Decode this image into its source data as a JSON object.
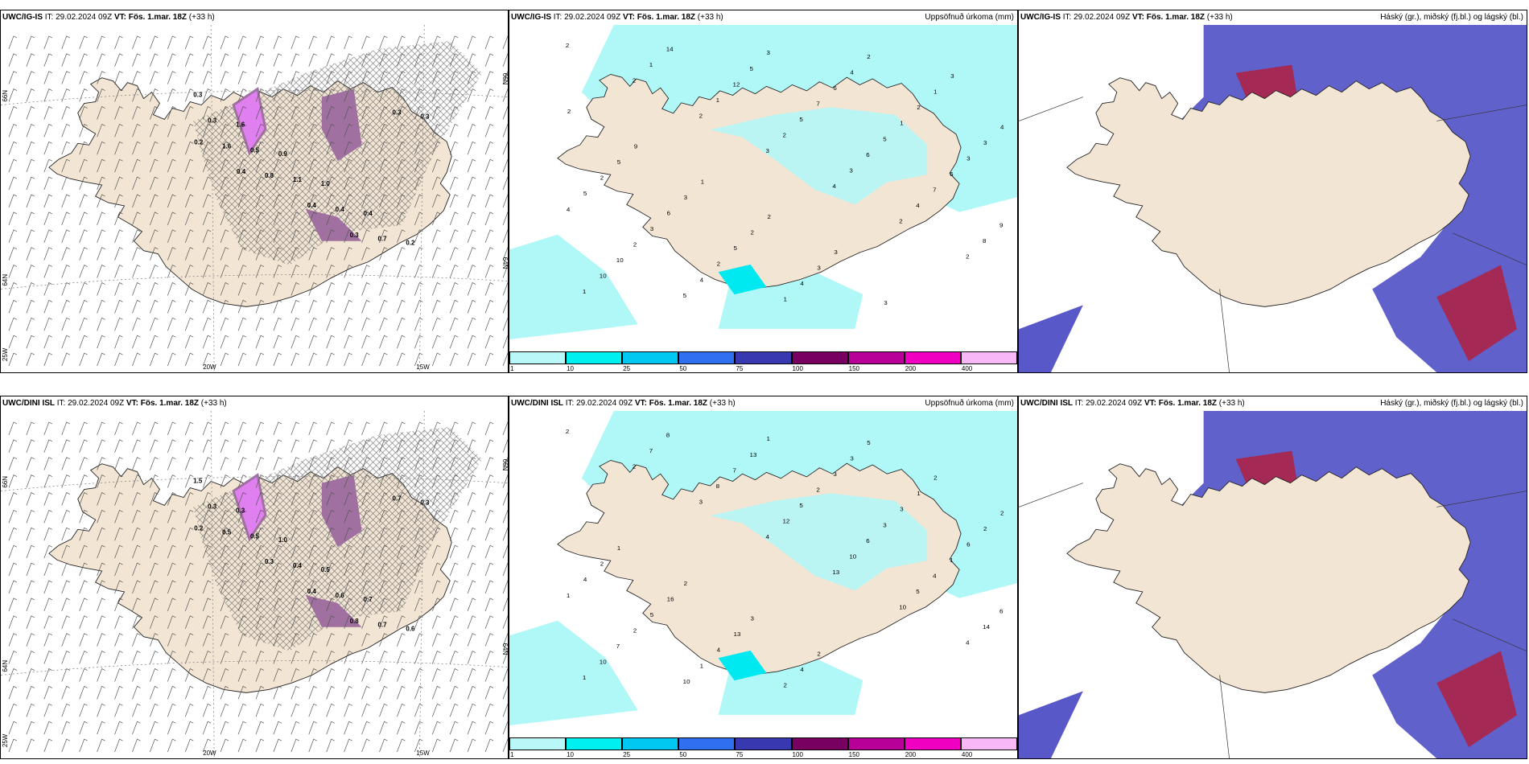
{
  "rows": [
    {
      "model": "UWC/IG-IS",
      "it_label": "IT:",
      "it_value": "29.02.2024 09Z",
      "vt_label": "VT:",
      "vt_value": "Fös. 1.mar. 18Z",
      "lead": "(+33 h)"
    },
    {
      "model": "UWC/DINI ISL",
      "it_label": "IT:",
      "it_value": "29.02.2024 09Z",
      "vt_label": "VT:",
      "vt_value": "Fös. 1.mar. 18Z",
      "lead": "(+33 h)"
    }
  ],
  "precip_title": "Uppsöfnuð úrkoma (mm)",
  "cloud_title": "Háský (gr.), miðský (fj.bl.) og lágský (bl.)",
  "axis": {
    "lat_66": "66N",
    "lat_64": "64N",
    "lon_25": "25W",
    "lon_20": "20W",
    "lon_15": "15W"
  },
  "colorbar": {
    "ticks": [
      "1",
      "10",
      "25",
      "50",
      "75",
      "100",
      "150",
      "200",
      "400"
    ],
    "colors": [
      "#b8f8f8",
      "#00f0f0",
      "#00c8f0",
      "#3070f0",
      "#3838b0",
      "#780060",
      "#b80098",
      "#f000c0",
      "#f8b8f8"
    ]
  },
  "colors": {
    "land": "#f3e5d4",
    "sea": "#ffffff",
    "snow_shade": "#a070a0",
    "snow_light": "#e080f0",
    "precip_light": "#b0f8f8",
    "precip_mid": "#00e8f0",
    "cloud_high": "#5858c8",
    "cloud_mid": "#90c0f0",
    "cloud_low": "#b02040"
  },
  "precip_numbers_top": [
    "2",
    "2",
    "2",
    "3",
    "4",
    "2",
    "2",
    "1",
    "1",
    "1",
    "2",
    "3",
    "4",
    "8",
    "10",
    "14",
    "12",
    "5",
    "6",
    "7",
    "9",
    "10",
    "5",
    "5",
    "7",
    "5",
    "6",
    "4",
    "2",
    "4",
    "3",
    "6",
    "1",
    "3",
    "5",
    "3",
    "2",
    "1",
    "4",
    "2",
    "3",
    "2",
    "6",
    "5",
    "4",
    "2",
    "1",
    "4",
    "5",
    "3",
    "2",
    "3",
    "3",
    "3",
    "2",
    "9",
    "1",
    "2",
    "3"
  ],
  "precip_numbers_bottom": [
    "2",
    "2",
    "3",
    "4",
    "13",
    "10",
    "4",
    "1",
    "7",
    "8",
    "12",
    "10",
    "5",
    "14",
    "10",
    "8",
    "7",
    "5",
    "6",
    "4",
    "6",
    "7",
    "10",
    "13",
    "2",
    "3",
    "1",
    "1",
    "2",
    "1",
    "1",
    "3",
    "3",
    "6",
    "4",
    "5",
    "4",
    "2",
    "3",
    "1",
    "2",
    "2",
    "16",
    "13",
    "4",
    "5",
    "2",
    "2",
    "1",
    "2",
    "3",
    "2"
  ],
  "snow_numbers_top": [
    "0.3",
    "1.6",
    "0.9",
    "1.0",
    "0.4",
    "0.2",
    "0.3",
    "0.5",
    "1.1",
    "0.4",
    "0.7",
    "0.3",
    "1.6",
    "0.8",
    "0.4",
    "0.3",
    "0.3",
    "0.2",
    "0.4"
  ],
  "snow_numbers_bottom": [
    "1.5",
    "0.3",
    "1.0",
    "0.5",
    "0.7",
    "0.6",
    "0.3",
    "0.5",
    "0.4",
    "0.6",
    "0.7",
    "0.3",
    "0.5",
    "0.3",
    "0.4",
    "0.8",
    "0.7",
    "0.2"
  ]
}
